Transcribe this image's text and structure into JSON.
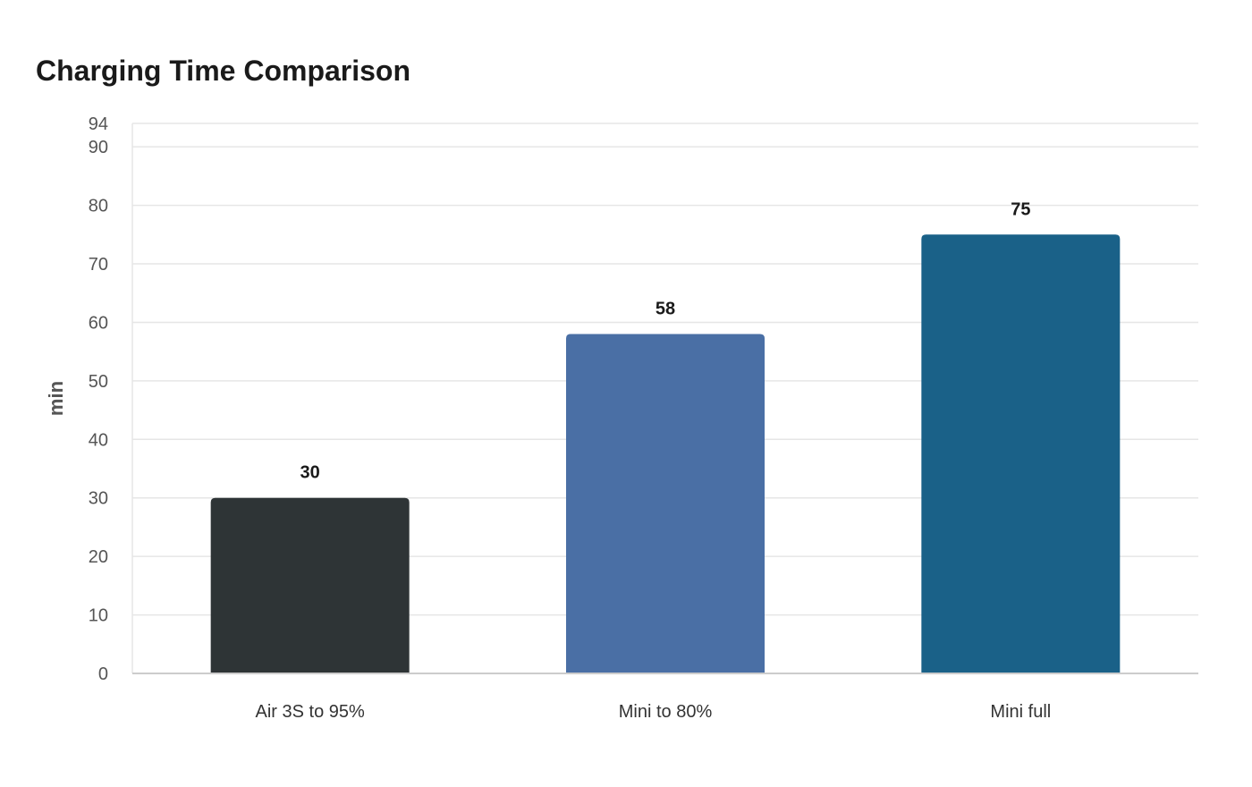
{
  "chart_data": {
    "type": "bar",
    "title": "Charging Time Comparison",
    "xlabel": "",
    "ylabel": "min",
    "categories": [
      "Air 3S to 95%",
      "Mini to 80%",
      "Mini full"
    ],
    "values": [
      30,
      58,
      75
    ],
    "colors": [
      "#2e3436",
      "#4a6fa5",
      "#1a6188"
    ],
    "ylim": [
      0,
      94
    ],
    "yticks": [
      0,
      10,
      20,
      30,
      40,
      50,
      60,
      70,
      80,
      90,
      94
    ],
    "grid": true,
    "legend": "none"
  },
  "colors": {
    "grid": "#e6e6e6",
    "axis": "#cccccc"
  }
}
